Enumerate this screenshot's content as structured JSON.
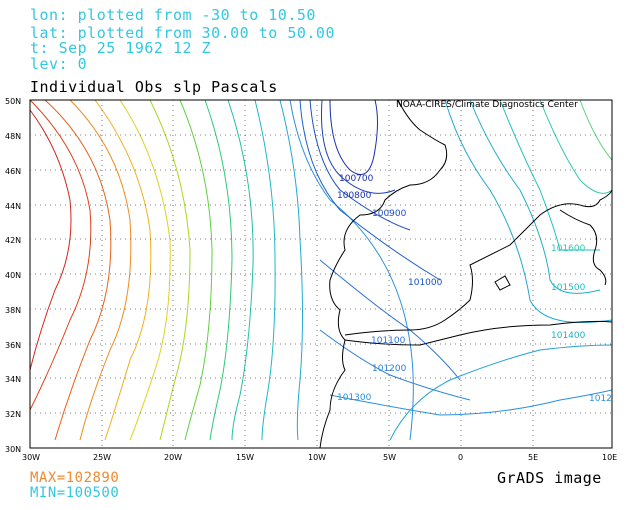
{
  "header": {
    "lon_line": "lon: plotted from -30 to 10.50",
    "lat_line": "lat: plotted from 30.00 to 50.00",
    "t_line": "t: Sep 25 1962 12 Z",
    "lev_line": "lev: 0"
  },
  "title": "Individual Obs slp Pascals",
  "credit": "NOAA-CIRES/Climate Diagnostics Center",
  "footer": {
    "grads": "GrADS image",
    "max": "MAX=102890",
    "min": "MIN=100500"
  },
  "axes": {
    "lat_ticks": [
      "50N",
      "48N",
      "46N",
      "44N",
      "42N",
      "40N",
      "38N",
      "36N",
      "34N",
      "32N",
      "30N"
    ],
    "lon_ticks": [
      "30W",
      "25W",
      "20W",
      "15W",
      "10W",
      "5W",
      "0",
      "5E",
      "10E"
    ]
  },
  "contour_labels": [
    {
      "text": "100700",
      "color": "#1a2fb0"
    },
    {
      "text": "100800",
      "color": "#1a2fb0"
    },
    {
      "text": "100900",
      "color": "#1a50c8"
    },
    {
      "text": "101000",
      "color": "#1a50c8"
    },
    {
      "text": "101100",
      "color": "#2a70d8"
    },
    {
      "text": "101200",
      "color": "#2a80d8"
    },
    {
      "text": "101300",
      "color": "#2a90e0"
    },
    {
      "text": "101400",
      "color": "#20b0c8"
    },
    {
      "text": "101500",
      "color": "#20c0c0"
    },
    {
      "text": "101600",
      "color": "#30c8b0"
    },
    {
      "text": "1012",
      "color": "#2a90e0"
    }
  ],
  "colors": {
    "info_text": "#33c8e0",
    "max_text": "#f08a30",
    "min_text": "#33c8e0",
    "coast": "#000000"
  }
}
